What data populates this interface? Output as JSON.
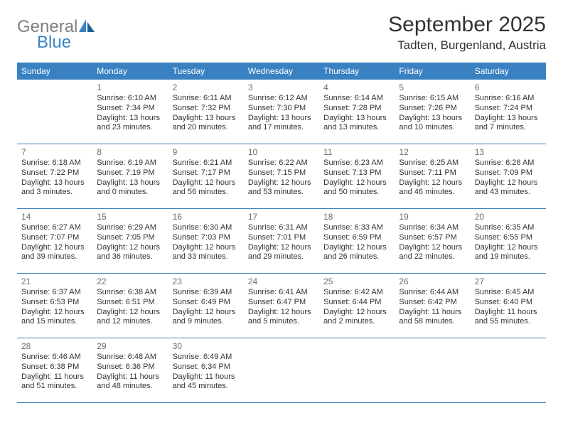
{
  "logo": {
    "general": "General",
    "blue": "Blue"
  },
  "title": "September 2025",
  "location": "Tadten, Burgenland, Austria",
  "colors": {
    "accent": "#3a81c2",
    "grey_text": "#7f7f7f"
  },
  "weekdays": [
    "Sunday",
    "Monday",
    "Tuesday",
    "Wednesday",
    "Thursday",
    "Friday",
    "Saturday"
  ],
  "calendar_type": "month_grid",
  "rows": [
    [
      null,
      {
        "day": "1",
        "sunrise": "Sunrise: 6:10 AM",
        "sunset": "Sunset: 7:34 PM",
        "daylight1": "Daylight: 13 hours",
        "daylight2": "and 23 minutes."
      },
      {
        "day": "2",
        "sunrise": "Sunrise: 6:11 AM",
        "sunset": "Sunset: 7:32 PM",
        "daylight1": "Daylight: 13 hours",
        "daylight2": "and 20 minutes."
      },
      {
        "day": "3",
        "sunrise": "Sunrise: 6:12 AM",
        "sunset": "Sunset: 7:30 PM",
        "daylight1": "Daylight: 13 hours",
        "daylight2": "and 17 minutes."
      },
      {
        "day": "4",
        "sunrise": "Sunrise: 6:14 AM",
        "sunset": "Sunset: 7:28 PM",
        "daylight1": "Daylight: 13 hours",
        "daylight2": "and 13 minutes."
      },
      {
        "day": "5",
        "sunrise": "Sunrise: 6:15 AM",
        "sunset": "Sunset: 7:26 PM",
        "daylight1": "Daylight: 13 hours",
        "daylight2": "and 10 minutes."
      },
      {
        "day": "6",
        "sunrise": "Sunrise: 6:16 AM",
        "sunset": "Sunset: 7:24 PM",
        "daylight1": "Daylight: 13 hours",
        "daylight2": "and 7 minutes."
      }
    ],
    [
      {
        "day": "7",
        "sunrise": "Sunrise: 6:18 AM",
        "sunset": "Sunset: 7:22 PM",
        "daylight1": "Daylight: 13 hours",
        "daylight2": "and 3 minutes."
      },
      {
        "day": "8",
        "sunrise": "Sunrise: 6:19 AM",
        "sunset": "Sunset: 7:19 PM",
        "daylight1": "Daylight: 13 hours",
        "daylight2": "and 0 minutes."
      },
      {
        "day": "9",
        "sunrise": "Sunrise: 6:21 AM",
        "sunset": "Sunset: 7:17 PM",
        "daylight1": "Daylight: 12 hours",
        "daylight2": "and 56 minutes."
      },
      {
        "day": "10",
        "sunrise": "Sunrise: 6:22 AM",
        "sunset": "Sunset: 7:15 PM",
        "daylight1": "Daylight: 12 hours",
        "daylight2": "and 53 minutes."
      },
      {
        "day": "11",
        "sunrise": "Sunrise: 6:23 AM",
        "sunset": "Sunset: 7:13 PM",
        "daylight1": "Daylight: 12 hours",
        "daylight2": "and 50 minutes."
      },
      {
        "day": "12",
        "sunrise": "Sunrise: 6:25 AM",
        "sunset": "Sunset: 7:11 PM",
        "daylight1": "Daylight: 12 hours",
        "daylight2": "and 46 minutes."
      },
      {
        "day": "13",
        "sunrise": "Sunrise: 6:26 AM",
        "sunset": "Sunset: 7:09 PM",
        "daylight1": "Daylight: 12 hours",
        "daylight2": "and 43 minutes."
      }
    ],
    [
      {
        "day": "14",
        "sunrise": "Sunrise: 6:27 AM",
        "sunset": "Sunset: 7:07 PM",
        "daylight1": "Daylight: 12 hours",
        "daylight2": "and 39 minutes."
      },
      {
        "day": "15",
        "sunrise": "Sunrise: 6:29 AM",
        "sunset": "Sunset: 7:05 PM",
        "daylight1": "Daylight: 12 hours",
        "daylight2": "and 36 minutes."
      },
      {
        "day": "16",
        "sunrise": "Sunrise: 6:30 AM",
        "sunset": "Sunset: 7:03 PM",
        "daylight1": "Daylight: 12 hours",
        "daylight2": "and 33 minutes."
      },
      {
        "day": "17",
        "sunrise": "Sunrise: 6:31 AM",
        "sunset": "Sunset: 7:01 PM",
        "daylight1": "Daylight: 12 hours",
        "daylight2": "and 29 minutes."
      },
      {
        "day": "18",
        "sunrise": "Sunrise: 6:33 AM",
        "sunset": "Sunset: 6:59 PM",
        "daylight1": "Daylight: 12 hours",
        "daylight2": "and 26 minutes."
      },
      {
        "day": "19",
        "sunrise": "Sunrise: 6:34 AM",
        "sunset": "Sunset: 6:57 PM",
        "daylight1": "Daylight: 12 hours",
        "daylight2": "and 22 minutes."
      },
      {
        "day": "20",
        "sunrise": "Sunrise: 6:35 AM",
        "sunset": "Sunset: 6:55 PM",
        "daylight1": "Daylight: 12 hours",
        "daylight2": "and 19 minutes."
      }
    ],
    [
      {
        "day": "21",
        "sunrise": "Sunrise: 6:37 AM",
        "sunset": "Sunset: 6:53 PM",
        "daylight1": "Daylight: 12 hours",
        "daylight2": "and 15 minutes."
      },
      {
        "day": "22",
        "sunrise": "Sunrise: 6:38 AM",
        "sunset": "Sunset: 6:51 PM",
        "daylight1": "Daylight: 12 hours",
        "daylight2": "and 12 minutes."
      },
      {
        "day": "23",
        "sunrise": "Sunrise: 6:39 AM",
        "sunset": "Sunset: 6:49 PM",
        "daylight1": "Daylight: 12 hours",
        "daylight2": "and 9 minutes."
      },
      {
        "day": "24",
        "sunrise": "Sunrise: 6:41 AM",
        "sunset": "Sunset: 6:47 PM",
        "daylight1": "Daylight: 12 hours",
        "daylight2": "and 5 minutes."
      },
      {
        "day": "25",
        "sunrise": "Sunrise: 6:42 AM",
        "sunset": "Sunset: 6:44 PM",
        "daylight1": "Daylight: 12 hours",
        "daylight2": "and 2 minutes."
      },
      {
        "day": "26",
        "sunrise": "Sunrise: 6:44 AM",
        "sunset": "Sunset: 6:42 PM",
        "daylight1": "Daylight: 11 hours",
        "daylight2": "and 58 minutes."
      },
      {
        "day": "27",
        "sunrise": "Sunrise: 6:45 AM",
        "sunset": "Sunset: 6:40 PM",
        "daylight1": "Daylight: 11 hours",
        "daylight2": "and 55 minutes."
      }
    ],
    [
      {
        "day": "28",
        "sunrise": "Sunrise: 6:46 AM",
        "sunset": "Sunset: 6:38 PM",
        "daylight1": "Daylight: 11 hours",
        "daylight2": "and 51 minutes."
      },
      {
        "day": "29",
        "sunrise": "Sunrise: 6:48 AM",
        "sunset": "Sunset: 6:36 PM",
        "daylight1": "Daylight: 11 hours",
        "daylight2": "and 48 minutes."
      },
      {
        "day": "30",
        "sunrise": "Sunrise: 6:49 AM",
        "sunset": "Sunset: 6:34 PM",
        "daylight1": "Daylight: 11 hours",
        "daylight2": "and 45 minutes."
      },
      null,
      null,
      null,
      null
    ]
  ]
}
